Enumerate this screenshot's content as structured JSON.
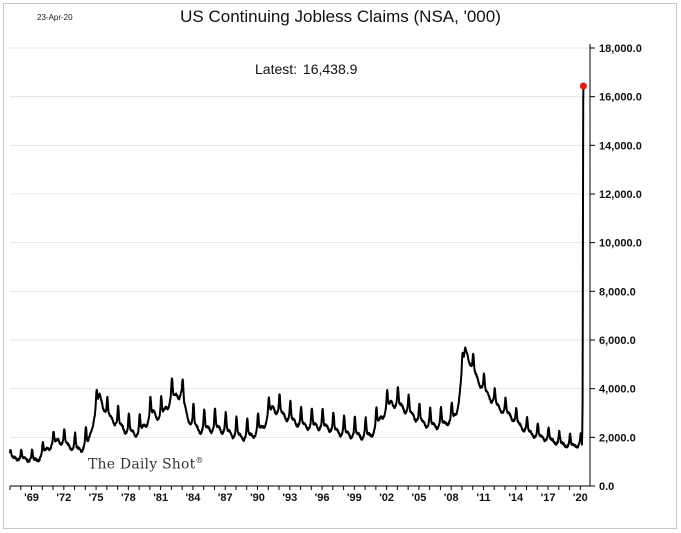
{
  "header": {
    "date": "23-Apr-20",
    "title": "US Continuing Jobless Claims (NSA, '000)",
    "latest_label": "Latest:",
    "latest_value": "16,438.9"
  },
  "watermark": {
    "text": "The Daily Shot",
    "mark": "®"
  },
  "colors": {
    "line": "#000000",
    "latest_point": "#e81818"
  },
  "chart_data": {
    "type": "line",
    "title": "US Continuing Jobless Claims (NSA, '000)",
    "xlabel": "",
    "ylabel": "",
    "x_range": [
      1967.0,
      2020.9
    ],
    "ylim": [
      0,
      18000
    ],
    "y_ticks": [
      0,
      2000,
      4000,
      6000,
      8000,
      10000,
      12000,
      14000,
      16000,
      18000
    ],
    "y_tick_labels": [
      "0.0",
      "2,000.0",
      "4,000.0",
      "6,000.0",
      "8,000.0",
      "10,000.0",
      "12,000.0",
      "14,000.0",
      "16,000.0",
      "18,000.0"
    ],
    "x_ticks": [
      1969,
      1972,
      1975,
      1978,
      1981,
      1984,
      1987,
      1990,
      1993,
      1996,
      1999,
      2002,
      2005,
      2008,
      2011,
      2014,
      2017,
      2020
    ],
    "x_tick_labels": [
      "'69",
      "'72",
      "'75",
      "'78",
      "'81",
      "'84",
      "'87",
      "'90",
      "'93",
      "'96",
      "'99",
      "'02",
      "'05",
      "'08",
      "'11",
      "'14",
      "'17",
      "'20"
    ],
    "grid": "horizontal",
    "y_axis_side": "right",
    "series": [
      {
        "baseline": [
          [
            1967.0,
            1200
          ],
          [
            1968.5,
            1150
          ],
          [
            1969.5,
            1100
          ],
          [
            1970.5,
            1600
          ],
          [
            1971.5,
            1950
          ],
          [
            1972.5,
            1700
          ],
          [
            1973.5,
            1550
          ],
          [
            1974.3,
            1900
          ],
          [
            1975.3,
            3800
          ],
          [
            1976.0,
            3000
          ],
          [
            1977.0,
            2650
          ],
          [
            1978.0,
            2300
          ],
          [
            1979.0,
            2250
          ],
          [
            1980.3,
            3100
          ],
          [
            1981.0,
            2900
          ],
          [
            1982.0,
            3700
          ],
          [
            1982.9,
            3900
          ],
          [
            1983.5,
            2900
          ],
          [
            1984.5,
            2400
          ],
          [
            1985.5,
            2450
          ],
          [
            1986.5,
            2450
          ],
          [
            1987.5,
            2250
          ],
          [
            1988.5,
            2100
          ],
          [
            1989.5,
            2150
          ],
          [
            1990.5,
            2500
          ],
          [
            1991.4,
            3300
          ],
          [
            1992.4,
            3000
          ],
          [
            1993.5,
            2700
          ],
          [
            1994.5,
            2550
          ],
          [
            1995.5,
            2550
          ],
          [
            1996.5,
            2500
          ],
          [
            1997.5,
            2300
          ],
          [
            1998.5,
            2200
          ],
          [
            1999.5,
            2150
          ],
          [
            2000.5,
            2150
          ],
          [
            2001.5,
            2900
          ],
          [
            2002.4,
            3500
          ],
          [
            2003.4,
            3350
          ],
          [
            2004.5,
            2950
          ],
          [
            2005.5,
            2650
          ],
          [
            2006.5,
            2550
          ],
          [
            2007.5,
            2650
          ],
          [
            2008.5,
            3000
          ],
          [
            2009.3,
            5700
          ],
          [
            2009.9,
            5000
          ],
          [
            2010.5,
            4400
          ],
          [
            2011.5,
            3750
          ],
          [
            2012.5,
            3250
          ],
          [
            2013.5,
            2950
          ],
          [
            2014.5,
            2500
          ],
          [
            2015.5,
            2200
          ],
          [
            2016.5,
            2050
          ],
          [
            2017.5,
            1900
          ],
          [
            2018.5,
            1750
          ],
          [
            2019.5,
            1700
          ],
          [
            2020.1,
            1800
          ]
        ],
        "seasonal_amplitude": [
          [
            1967,
            280
          ],
          [
            1975,
            650
          ],
          [
            1983,
            750
          ],
          [
            1990,
            650
          ],
          [
            2002,
            650
          ],
          [
            2009,
            600
          ],
          [
            2015,
            480
          ],
          [
            2020,
            380
          ]
        ],
        "spike": [
          [
            2020.15,
            1700
          ],
          [
            2020.18,
            2200
          ],
          [
            2020.21,
            3400
          ],
          [
            2020.23,
            7400
          ],
          [
            2020.25,
            11900
          ],
          [
            2020.27,
            15800
          ],
          [
            2020.29,
            16438.9
          ]
        ],
        "latest": 16438.9
      }
    ]
  }
}
